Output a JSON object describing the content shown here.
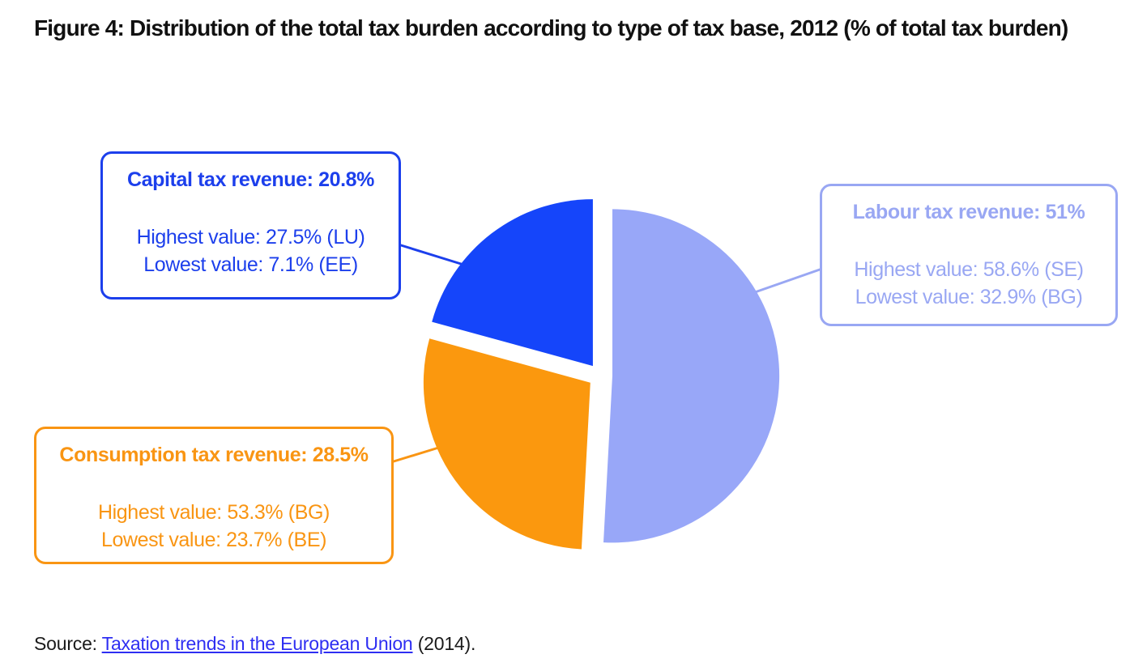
{
  "title": "Figure 4: Distribution of the total tax burden according to type of tax base, 2012 (% of total tax burden)",
  "source": {
    "prefix": "Source: ",
    "link_text": "Taxation trends in the European Union",
    "suffix": " (2014).",
    "link_color": "#2e2ef2",
    "text_color": "#1a1a1a"
  },
  "chart_data": {
    "type": "pie",
    "title": "Distribution of the total tax burden according to type of tax base, 2012",
    "units": "% of total tax burden",
    "year": "2012",
    "direction": "clockwise",
    "start_angle_deg": 0,
    "exploded": true,
    "legend_position": "callout-boxes",
    "slices": [
      {
        "label": "Labour tax revenue",
        "value": 51,
        "fill": "#98a7f8",
        "accent": "#99a7f3",
        "callout": {
          "heading": "Labour tax revenue: 51%",
          "highest": "Highest value: 58.6% (SE)",
          "lowest": "Lowest value: 32.9% (BG)"
        }
      },
      {
        "label": "Consumption tax revenue",
        "value": 28.5,
        "fill": "#fb980e",
        "accent": "#f99513",
        "callout": {
          "heading": "Consumption tax revenue: 28.5%",
          "highest": "Highest value: 53.3% (BG)",
          "lowest": "Lowest value: 23.7% (BE)"
        }
      },
      {
        "label": "Capital tax revenue",
        "value": 20.8,
        "fill": "#1545fa",
        "accent": "#1c3fec",
        "callout": {
          "heading": "Capital tax revenue: 20.8%",
          "highest": "Highest value: 27.5% (LU)",
          "lowest": "Lowest value: 7.1% (EE)"
        }
      }
    ]
  }
}
